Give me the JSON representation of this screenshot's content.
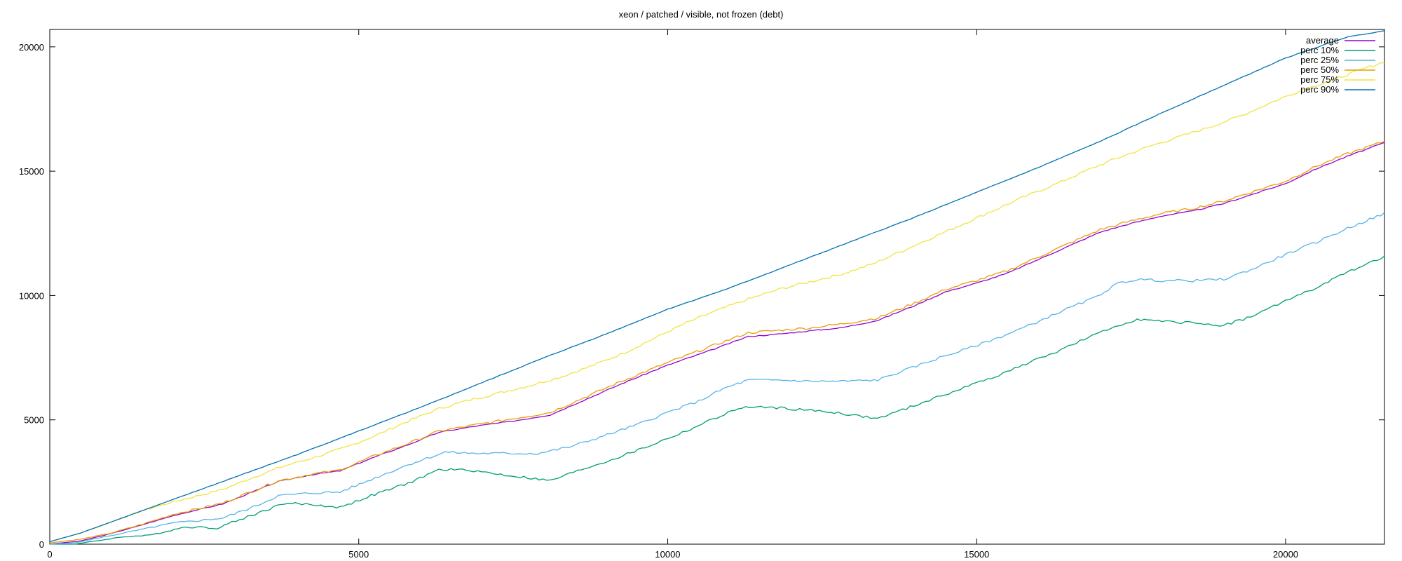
{
  "chart_data": {
    "type": "line",
    "title": "xeon / patched / visible, not frozen (debt)",
    "xlabel": "",
    "ylabel": "",
    "xlim": [
      0,
      21600
    ],
    "ylim": [
      0,
      20700
    ],
    "xticks": [
      0,
      5000,
      10000,
      15000,
      20000
    ],
    "yticks": [
      0,
      5000,
      10000,
      15000,
      20000
    ],
    "legend_position": "top-right",
    "series": [
      {
        "name": "average",
        "color": "#9400d3",
        "points": [
          [
            0,
            0
          ],
          [
            500,
            130
          ],
          [
            1000,
            430
          ],
          [
            1500,
            780
          ],
          [
            2000,
            1150
          ],
          [
            2800,
            1620
          ],
          [
            3700,
            2520
          ],
          [
            4200,
            2780
          ],
          [
            4700,
            2950
          ],
          [
            5200,
            3450
          ],
          [
            5800,
            4000
          ],
          [
            6300,
            4500
          ],
          [
            6900,
            4750
          ],
          [
            7500,
            4950
          ],
          [
            8100,
            5200
          ],
          [
            8700,
            5850
          ],
          [
            9300,
            6500
          ],
          [
            10000,
            7200
          ],
          [
            10700,
            7800
          ],
          [
            11300,
            8350
          ],
          [
            11800,
            8450
          ],
          [
            12300,
            8580
          ],
          [
            12800,
            8700
          ],
          [
            13400,
            9000
          ],
          [
            14000,
            9600
          ],
          [
            14500,
            10150
          ],
          [
            15000,
            10500
          ],
          [
            15500,
            10900
          ],
          [
            16000,
            11450
          ],
          [
            16500,
            12000
          ],
          [
            17000,
            12550
          ],
          [
            17500,
            12900
          ],
          [
            18000,
            13200
          ],
          [
            18500,
            13400
          ],
          [
            19000,
            13700
          ],
          [
            19500,
            14100
          ],
          [
            20000,
            14500
          ],
          [
            20500,
            15100
          ],
          [
            21000,
            15600
          ],
          [
            21600,
            16150
          ]
        ]
      },
      {
        "name": "perc 10%",
        "color": "#009e73",
        "points": [
          [
            0,
            0
          ],
          [
            400,
            0
          ],
          [
            800,
            150
          ],
          [
            1200,
            300
          ],
          [
            1600,
            350
          ],
          [
            2200,
            700
          ],
          [
            2700,
            650
          ],
          [
            3200,
            1100
          ],
          [
            3800,
            1650
          ],
          [
            4200,
            1600
          ],
          [
            4700,
            1480
          ],
          [
            5200,
            1950
          ],
          [
            5800,
            2450
          ],
          [
            6300,
            3000
          ],
          [
            6800,
            2980
          ],
          [
            7300,
            2800
          ],
          [
            7800,
            2650
          ],
          [
            8100,
            2550
          ],
          [
            8600,
            3000
          ],
          [
            9100,
            3400
          ],
          [
            9700,
            3950
          ],
          [
            10300,
            4550
          ],
          [
            10800,
            5100
          ],
          [
            11200,
            5500
          ],
          [
            11700,
            5500
          ],
          [
            12200,
            5400
          ],
          [
            12700,
            5300
          ],
          [
            13100,
            5150
          ],
          [
            13400,
            5050
          ],
          [
            13800,
            5400
          ],
          [
            14300,
            5850
          ],
          [
            14800,
            6300
          ],
          [
            15300,
            6750
          ],
          [
            15800,
            7250
          ],
          [
            16300,
            7750
          ],
          [
            16800,
            8300
          ],
          [
            17300,
            8800
          ],
          [
            17600,
            9050
          ],
          [
            18000,
            8950
          ],
          [
            18500,
            8900
          ],
          [
            19000,
            8800
          ],
          [
            19500,
            9200
          ],
          [
            20000,
            9800
          ],
          [
            20500,
            10300
          ],
          [
            21000,
            10950
          ],
          [
            21600,
            11550
          ]
        ]
      },
      {
        "name": "perc 25%",
        "color": "#56b4e9",
        "points": [
          [
            0,
            0
          ],
          [
            400,
            50
          ],
          [
            900,
            300
          ],
          [
            1400,
            550
          ],
          [
            2000,
            850
          ],
          [
            2800,
            1050
          ],
          [
            3300,
            1500
          ],
          [
            3700,
            1950
          ],
          [
            4200,
            2050
          ],
          [
            4700,
            2100
          ],
          [
            5200,
            2600
          ],
          [
            5800,
            3200
          ],
          [
            6400,
            3700
          ],
          [
            6900,
            3650
          ],
          [
            7400,
            3650
          ],
          [
            7900,
            3650
          ],
          [
            8400,
            3900
          ],
          [
            8900,
            4300
          ],
          [
            9500,
            4800
          ],
          [
            10000,
            5300
          ],
          [
            10500,
            5750
          ],
          [
            10900,
            6250
          ],
          [
            11300,
            6600
          ],
          [
            11800,
            6600
          ],
          [
            12300,
            6550
          ],
          [
            12800,
            6550
          ],
          [
            13400,
            6600
          ],
          [
            13900,
            7050
          ],
          [
            14400,
            7500
          ],
          [
            14900,
            7900
          ],
          [
            15400,
            8350
          ],
          [
            15900,
            8850
          ],
          [
            16400,
            9400
          ],
          [
            16900,
            9900
          ],
          [
            17300,
            10500
          ],
          [
            17600,
            10650
          ],
          [
            18000,
            10600
          ],
          [
            18500,
            10600
          ],
          [
            19000,
            10650
          ],
          [
            19500,
            11100
          ],
          [
            20000,
            11650
          ],
          [
            20500,
            12150
          ],
          [
            21000,
            12700
          ],
          [
            21600,
            13300
          ]
        ]
      },
      {
        "name": "perc 50%",
        "color": "#e69f00",
        "points": [
          [
            0,
            50
          ],
          [
            500,
            200
          ],
          [
            1000,
            450
          ],
          [
            1500,
            800
          ],
          [
            2000,
            1200
          ],
          [
            2800,
            1650
          ],
          [
            3700,
            2550
          ],
          [
            4200,
            2800
          ],
          [
            4700,
            2980
          ],
          [
            5200,
            3500
          ],
          [
            5800,
            4050
          ],
          [
            6300,
            4550
          ],
          [
            6900,
            4800
          ],
          [
            7500,
            5050
          ],
          [
            8100,
            5300
          ],
          [
            8700,
            5950
          ],
          [
            9300,
            6600
          ],
          [
            10000,
            7300
          ],
          [
            10700,
            7950
          ],
          [
            11300,
            8500
          ],
          [
            11800,
            8600
          ],
          [
            12300,
            8700
          ],
          [
            12800,
            8850
          ],
          [
            13400,
            9100
          ],
          [
            14000,
            9700
          ],
          [
            14500,
            10250
          ],
          [
            15000,
            10600
          ],
          [
            15500,
            11000
          ],
          [
            16000,
            11550
          ],
          [
            16500,
            12100
          ],
          [
            17000,
            12650
          ],
          [
            17500,
            13000
          ],
          [
            18000,
            13300
          ],
          [
            18500,
            13500
          ],
          [
            19000,
            13800
          ],
          [
            19500,
            14200
          ],
          [
            20000,
            14600
          ],
          [
            20500,
            15200
          ],
          [
            21000,
            15700
          ],
          [
            21600,
            16200
          ]
        ]
      },
      {
        "name": "perc 75%",
        "color": "#f0e442",
        "points": [
          [
            0,
            100
          ],
          [
            500,
            450
          ],
          [
            1000,
            900
          ],
          [
            1500,
            1350
          ],
          [
            2000,
            1700
          ],
          [
            2800,
            2200
          ],
          [
            3300,
            2700
          ],
          [
            3800,
            3150
          ],
          [
            4300,
            3500
          ],
          [
            4800,
            3900
          ],
          [
            5300,
            4400
          ],
          [
            5800,
            4950
          ],
          [
            6300,
            5450
          ],
          [
            6800,
            5800
          ],
          [
            7300,
            6100
          ],
          [
            7800,
            6400
          ],
          [
            8300,
            6750
          ],
          [
            8800,
            7200
          ],
          [
            9300,
            7700
          ],
          [
            9800,
            8300
          ],
          [
            10300,
            8900
          ],
          [
            10800,
            9400
          ],
          [
            11300,
            9850
          ],
          [
            11800,
            10250
          ],
          [
            12300,
            10550
          ],
          [
            12800,
            10850
          ],
          [
            13300,
            11250
          ],
          [
            13800,
            11800
          ],
          [
            14300,
            12350
          ],
          [
            14800,
            12900
          ],
          [
            15300,
            13450
          ],
          [
            15800,
            14000
          ],
          [
            16300,
            14500
          ],
          [
            16800,
            15050
          ],
          [
            17300,
            15550
          ],
          [
            17800,
            16000
          ],
          [
            18300,
            16400
          ],
          [
            18800,
            16800
          ],
          [
            19300,
            17250
          ],
          [
            19800,
            17800
          ],
          [
            20300,
            18300
          ],
          [
            20800,
            18700
          ],
          [
            21300,
            19150
          ],
          [
            21600,
            19400
          ]
        ]
      },
      {
        "name": "perc 90%",
        "color": "#0072b2",
        "points": [
          [
            0,
            100
          ],
          [
            500,
            450
          ],
          [
            1000,
            900
          ],
          [
            2000,
            1800
          ],
          [
            3000,
            2700
          ],
          [
            4000,
            3600
          ],
          [
            5000,
            4550
          ],
          [
            6000,
            5500
          ],
          [
            7000,
            6500
          ],
          [
            8000,
            7500
          ],
          [
            9000,
            8450
          ],
          [
            10000,
            9450
          ],
          [
            11000,
            10300
          ],
          [
            12000,
            11250
          ],
          [
            13000,
            12200
          ],
          [
            14000,
            13150
          ],
          [
            15000,
            14150
          ],
          [
            16000,
            15150
          ],
          [
            17000,
            16200
          ],
          [
            18000,
            17350
          ],
          [
            19000,
            18450
          ],
          [
            20000,
            19550
          ],
          [
            21000,
            20400
          ],
          [
            21600,
            20650
          ]
        ]
      }
    ]
  }
}
